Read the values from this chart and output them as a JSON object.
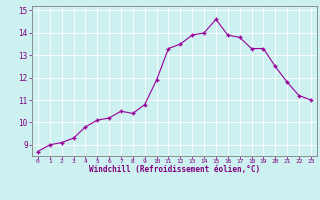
{
  "x": [
    0,
    1,
    2,
    3,
    4,
    5,
    6,
    7,
    8,
    9,
    10,
    11,
    12,
    13,
    14,
    15,
    16,
    17,
    18,
    19,
    20,
    21,
    22,
    23
  ],
  "y": [
    8.7,
    9.0,
    9.1,
    9.3,
    9.8,
    10.1,
    10.2,
    10.5,
    10.4,
    10.8,
    11.9,
    13.3,
    13.5,
    13.9,
    14.0,
    14.6,
    13.9,
    13.8,
    13.3,
    13.3,
    12.5,
    11.8,
    11.2,
    11.0
  ],
  "ylim": [
    8.5,
    15.2
  ],
  "yticks": [
    9,
    10,
    11,
    12,
    13,
    14,
    15
  ],
  "xticks": [
    0,
    1,
    2,
    3,
    4,
    5,
    6,
    7,
    8,
    9,
    10,
    11,
    12,
    13,
    14,
    15,
    16,
    17,
    18,
    19,
    20,
    21,
    22,
    23
  ],
  "line_color": "#990099",
  "marker": "+",
  "marker_size": 3,
  "xlabel": "Windchill (Refroidissement éolien,°C)",
  "background_color": "#cdf0f0",
  "grid_color": "#ffffff",
  "label_color": "#800080",
  "tick_color": "#800080",
  "spine_color": "#808080",
  "font": "monospace"
}
